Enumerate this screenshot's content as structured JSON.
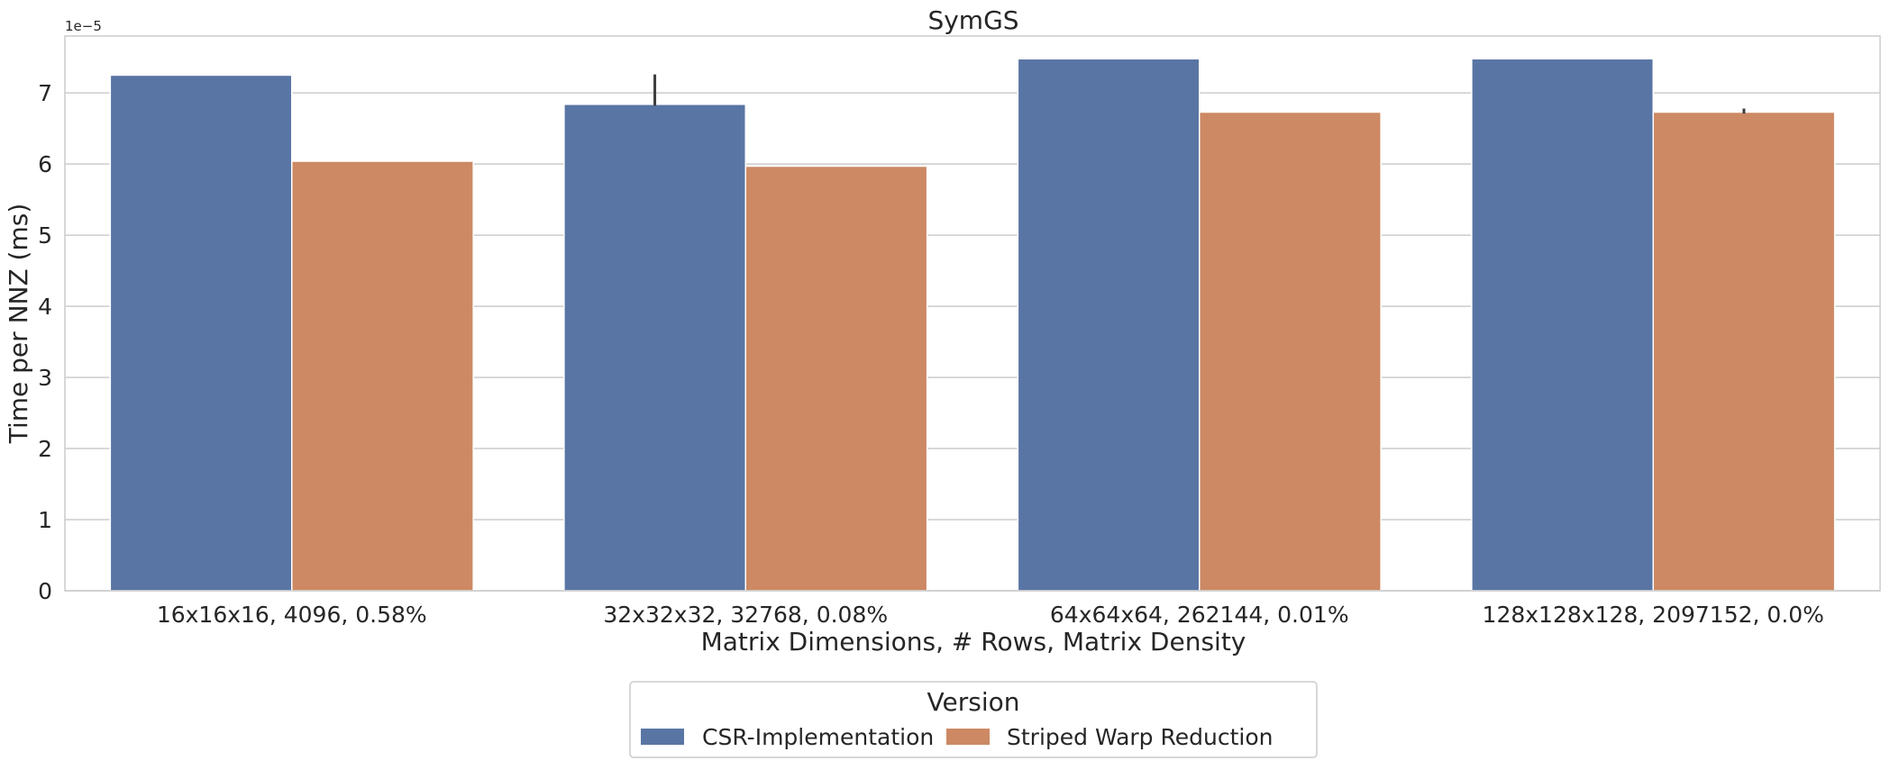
{
  "chart_data": {
    "type": "bar",
    "title": "SymGS",
    "xlabel": "Matrix Dimensions, # Rows, Matrix Density",
    "ylabel": "Time per NNZ (ms)",
    "y_offset_text": "1e−5",
    "y_scale_exponent": -5,
    "ylim": [
      0,
      7.8
    ],
    "yticks": [
      0,
      1,
      2,
      3,
      4,
      5,
      6,
      7
    ],
    "ytick_labels": [
      "0",
      "1",
      "2",
      "3",
      "4",
      "5",
      "6",
      "7"
    ],
    "grid": true,
    "categories": [
      "16x16x16, 4096, 0.58%",
      "32x32x32, 32768, 0.08%",
      "64x64x64, 262144, 0.01%",
      "128x128x128, 2097152, 0.0%"
    ],
    "series": [
      {
        "name": "CSR-Implementation",
        "color": "#5975a4",
        "values": [
          7.25,
          6.84,
          7.48,
          7.48
        ],
        "error_bars": [
          null,
          [
            6.82,
            7.26
          ],
          null,
          null
        ]
      },
      {
        "name": "Striped Warp Reduction",
        "color": "#cc8963",
        "values": [
          6.04,
          5.97,
          6.73,
          6.73
        ],
        "error_bars": [
          null,
          null,
          null,
          [
            6.71,
            6.78
          ]
        ]
      }
    ],
    "legend": {
      "title": "Version",
      "placement": "below-center"
    }
  }
}
